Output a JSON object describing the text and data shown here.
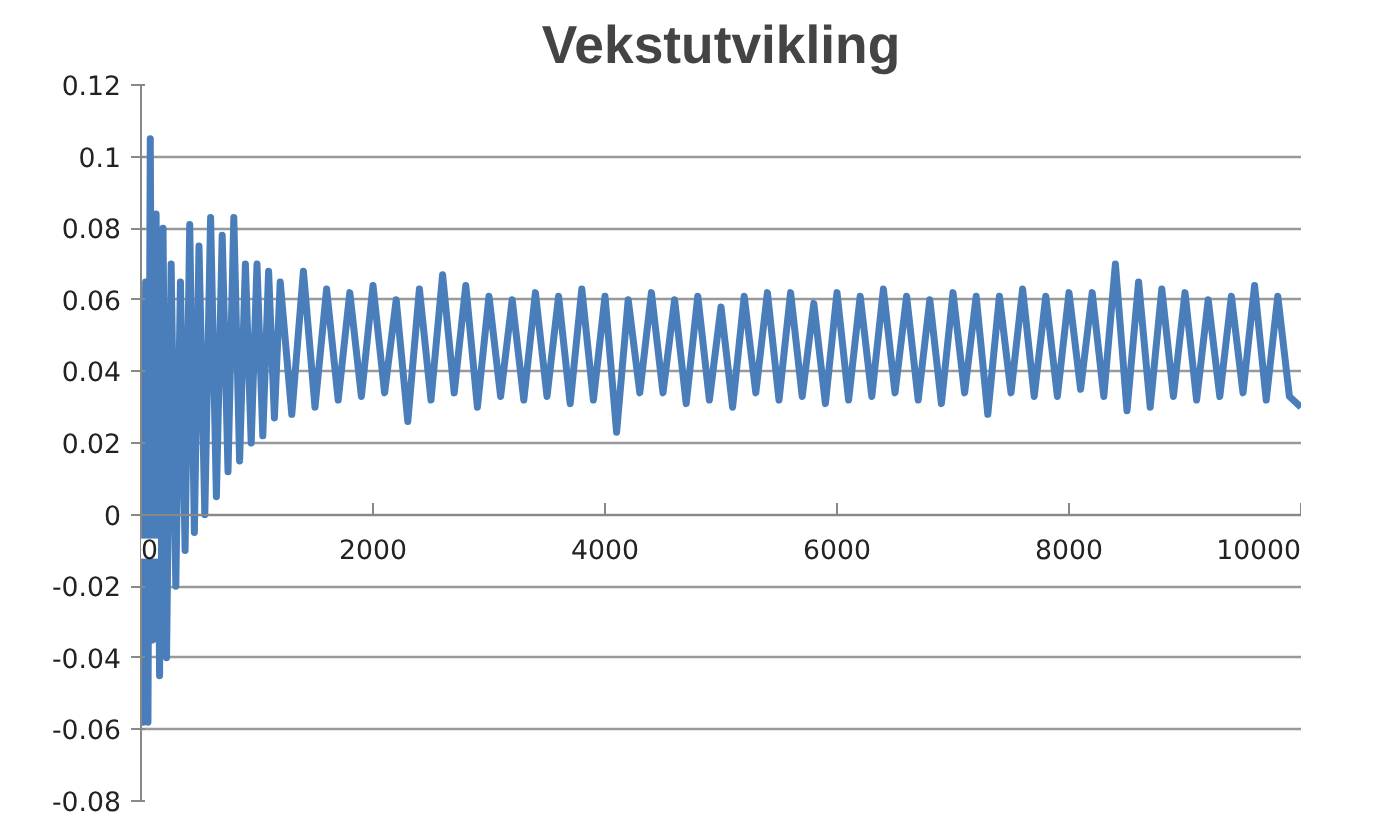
{
  "chart_data": {
    "type": "line",
    "title": "Vekstutvikling",
    "x": [
      0,
      20,
      40,
      60,
      80,
      100,
      130,
      160,
      190,
      220,
      260,
      300,
      340,
      380,
      420,
      460,
      500,
      550,
      600,
      650,
      700,
      750,
      800,
      850,
      900,
      950,
      1000,
      1050,
      1100,
      1150,
      1200,
      1300,
      1400,
      1500,
      1600,
      1700,
      1800,
      1900,
      2000,
      2100,
      2200,
      2300,
      2400,
      2500,
      2600,
      2700,
      2800,
      2900,
      3000,
      3100,
      3200,
      3300,
      3400,
      3500,
      3600,
      3700,
      3800,
      3900,
      4000,
      4100,
      4200,
      4300,
      4400,
      4500,
      4600,
      4700,
      4800,
      4900,
      5000,
      5100,
      5200,
      5300,
      5400,
      5500,
      5600,
      5700,
      5800,
      5900,
      6000,
      6100,
      6200,
      6300,
      6400,
      6500,
      6600,
      6700,
      6800,
      6900,
      7000,
      7100,
      7200,
      7300,
      7400,
      7500,
      7600,
      7700,
      7800,
      7900,
      8000,
      8100,
      8200,
      8300,
      8400,
      8500,
      8600,
      8700,
      8800,
      8900,
      9000,
      9100,
      9200,
      9300,
      9400,
      9500,
      9600,
      9700,
      9800,
      9900,
      10000
    ],
    "series": [
      {
        "color": "#4a7ebb",
        "values": [
          0.05,
          -0.058,
          0.065,
          -0.058,
          0.105,
          -0.035,
          0.084,
          -0.045,
          0.08,
          -0.04,
          0.07,
          -0.02,
          0.065,
          -0.01,
          0.081,
          -0.005,
          0.075,
          0.0,
          0.083,
          0.005,
          0.078,
          0.012,
          0.083,
          0.015,
          0.07,
          0.02,
          0.07,
          0.022,
          0.068,
          0.027,
          0.065,
          0.028,
          0.068,
          0.03,
          0.063,
          0.032,
          0.062,
          0.033,
          0.064,
          0.034,
          0.06,
          0.026,
          0.063,
          0.032,
          0.067,
          0.034,
          0.064,
          0.03,
          0.061,
          0.033,
          0.06,
          0.032,
          0.062,
          0.033,
          0.061,
          0.031,
          0.063,
          0.032,
          0.061,
          0.023,
          0.06,
          0.034,
          0.062,
          0.034,
          0.06,
          0.031,
          0.061,
          0.032,
          0.058,
          0.03,
          0.061,
          0.034,
          0.062,
          0.032,
          0.062,
          0.033,
          0.059,
          0.031,
          0.062,
          0.032,
          0.061,
          0.033,
          0.063,
          0.034,
          0.061,
          0.032,
          0.06,
          0.031,
          0.062,
          0.034,
          0.061,
          0.028,
          0.061,
          0.034,
          0.063,
          0.033,
          0.061,
          0.033,
          0.062,
          0.035,
          0.062,
          0.033,
          0.07,
          0.029,
          0.065,
          0.03,
          0.063,
          0.033,
          0.062,
          0.032,
          0.06,
          0.033,
          0.061,
          0.034,
          0.064,
          0.032,
          0.061,
          0.033,
          0.03
        ]
      }
    ],
    "xlim": [
      0,
      10000
    ],
    "xticks": [
      0,
      2000,
      4000,
      6000,
      8000,
      10000
    ],
    "ylim": [
      -0.08,
      0.12
    ],
    "yticks": [
      -0.08,
      -0.06,
      -0.04,
      -0.02,
      0,
      0.02,
      0.04,
      0.06,
      0.08,
      0.1,
      0.12
    ],
    "grid": "y"
  }
}
